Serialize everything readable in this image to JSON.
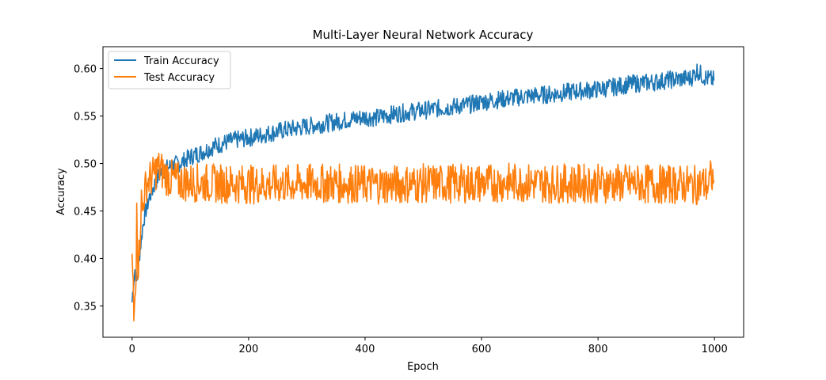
{
  "chart_data": {
    "type": "line",
    "title": "Multi-Layer Neural Network Accuracy",
    "xlabel": "Epoch",
    "ylabel": "Accuracy",
    "xlim": [
      -50,
      1050
    ],
    "ylim": [
      0.317,
      0.623
    ],
    "xticks": [
      0,
      200,
      400,
      600,
      800,
      1000
    ],
    "yticks": [
      0.35,
      0.4,
      0.45,
      0.5,
      0.55,
      0.6
    ],
    "ytick_labels": [
      "0.35",
      "0.40",
      "0.45",
      "0.50",
      "0.55",
      "0.60"
    ],
    "grid": false,
    "legend_position": "upper-left",
    "series": [
      {
        "name": "Train Accuracy",
        "color": "#1f77b4",
        "x": [
          0,
          2,
          5,
          8,
          10,
          12,
          15,
          18,
          20,
          22,
          25,
          28,
          30,
          35,
          40,
          45,
          50,
          60,
          70,
          80,
          90,
          100,
          120,
          140,
          160,
          180,
          200,
          230,
          260,
          300,
          340,
          380,
          400,
          420,
          440,
          460,
          500,
          540,
          580,
          600,
          640,
          680,
          720,
          760,
          800,
          820,
          840,
          860,
          880,
          900,
          920,
          940,
          960,
          970,
          980,
          990,
          999
        ],
        "y": [
          0.354,
          0.372,
          0.388,
          0.375,
          0.386,
          0.4,
          0.415,
          0.432,
          0.44,
          0.447,
          0.453,
          0.46,
          0.465,
          0.472,
          0.48,
          0.486,
          0.49,
          0.495,
          0.498,
          0.5,
          0.503,
          0.507,
          0.512,
          0.518,
          0.522,
          0.525,
          0.527,
          0.531,
          0.535,
          0.539,
          0.543,
          0.547,
          0.549,
          0.548,
          0.551,
          0.553,
          0.556,
          0.559,
          0.562,
          0.565,
          0.568,
          0.571,
          0.573,
          0.576,
          0.578,
          0.58,
          0.582,
          0.584,
          0.585,
          0.586,
          0.588,
          0.589,
          0.59,
          0.598,
          0.592,
          0.589,
          0.588
        ]
      },
      {
        "name": "Test Accuracy",
        "color": "#ff7f0e",
        "x": [
          0,
          1,
          2,
          3,
          4,
          5,
          6,
          7,
          8,
          10,
          12,
          14,
          16,
          18,
          20,
          23,
          26,
          30,
          35,
          40,
          45,
          50,
          55,
          60,
          70,
          80,
          100,
          150,
          200,
          250,
          300,
          350,
          400,
          450,
          500,
          550,
          600,
          650,
          670,
          700,
          750,
          800,
          850,
          900,
          950,
          960,
          980,
          990,
          995,
          999
        ],
        "y": [
          0.388,
          0.392,
          0.37,
          0.332,
          0.34,
          0.35,
          0.364,
          0.38,
          0.474,
          0.39,
          0.405,
          0.43,
          0.462,
          0.45,
          0.465,
          0.475,
          0.48,
          0.483,
          0.486,
          0.492,
          0.495,
          0.493,
          0.49,
          0.486,
          0.483,
          0.481,
          0.48,
          0.479,
          0.478,
          0.478,
          0.479,
          0.479,
          0.478,
          0.478,
          0.479,
          0.479,
          0.479,
          0.48,
          0.48,
          0.479,
          0.479,
          0.479,
          0.479,
          0.478,
          0.478,
          0.477,
          0.478,
          0.477,
          0.488,
          0.476
        ]
      }
    ]
  }
}
